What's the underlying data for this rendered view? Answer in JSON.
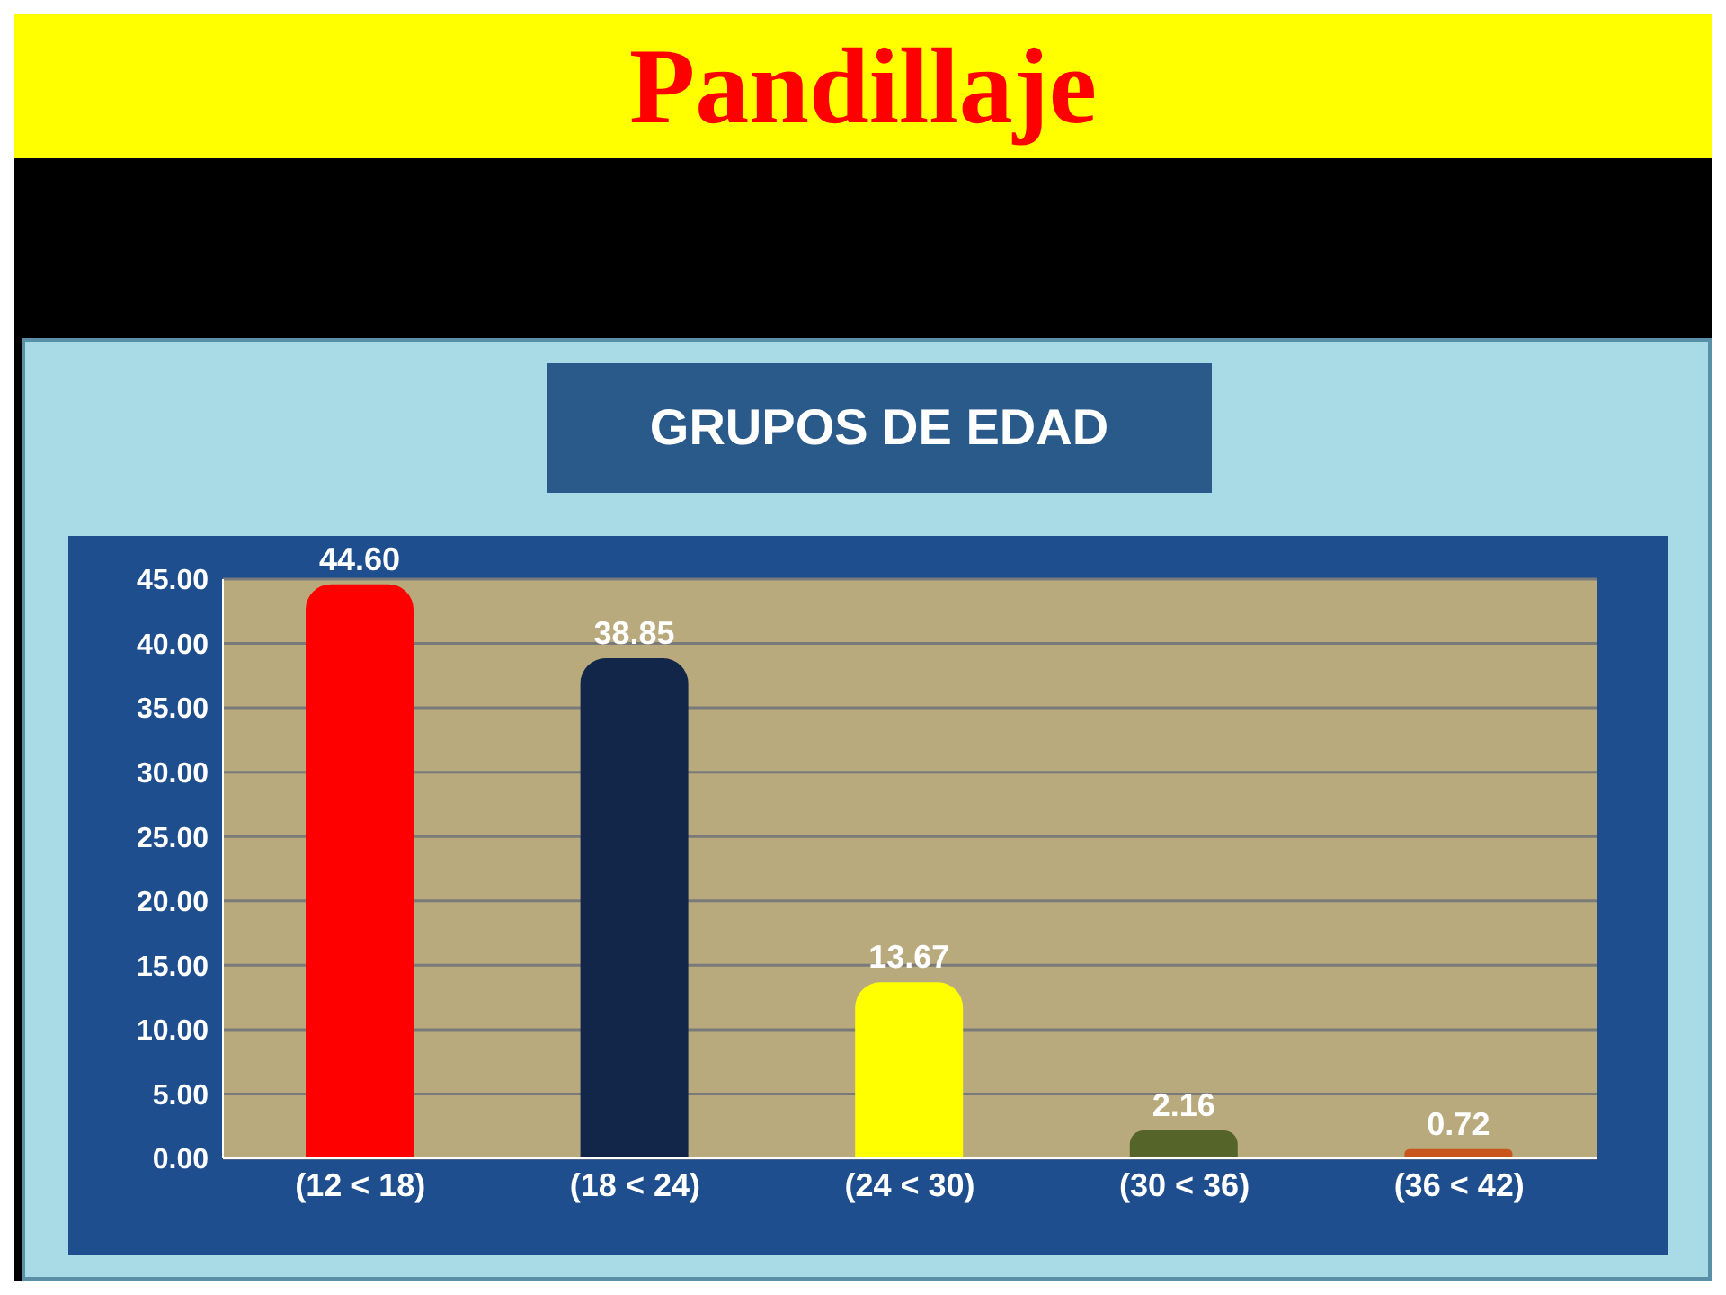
{
  "chart_data": {
    "type": "bar",
    "title": "Pandillaje",
    "subtitle": "GRUPOS DE EDAD",
    "categories": [
      "(12 < 18)",
      "(18 < 24)",
      "(24 < 30)",
      "(30 < 36)",
      "(36 < 42)"
    ],
    "values": [
      44.6,
      38.85,
      13.67,
      2.16,
      0.72
    ],
    "value_labels": [
      "44.60",
      "38.85",
      "13.67",
      "2.16",
      "0.72"
    ],
    "colors": [
      "#ff0000",
      "#12264a",
      "#ffff00",
      "#55652a",
      "#c8561c"
    ],
    "ylim": [
      0,
      45
    ],
    "yticks": [
      {
        "value": 0,
        "label": "0.00"
      },
      {
        "value": 5,
        "label": "5.00"
      },
      {
        "value": 10,
        "label": "10.00"
      },
      {
        "value": 15,
        "label": "15.00"
      },
      {
        "value": 20,
        "label": "20.00"
      },
      {
        "value": 25,
        "label": "25.00"
      },
      {
        "value": 30,
        "label": "30.00"
      },
      {
        "value": 35,
        "label": "35.00"
      },
      {
        "value": 40,
        "label": "40.00"
      },
      {
        "value": 45,
        "label": "45.00"
      }
    ],
    "grid": "y"
  }
}
